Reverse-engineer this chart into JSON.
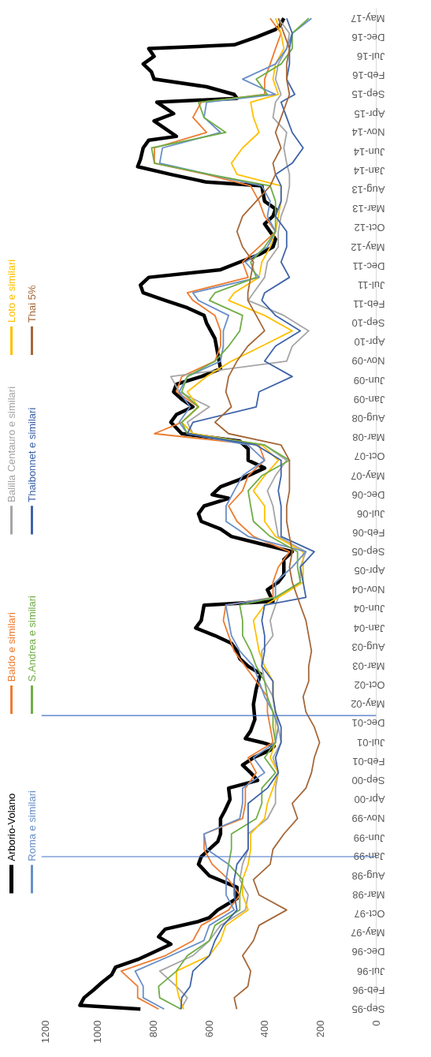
{
  "chart_data": {
    "type": "line",
    "legend": "left",
    "orientation": "horizontal",
    "ylim": [
      "1995-08-12",
      "2017-07-20"
    ],
    "xlim": [
      1200,
      0
    ],
    "xticks": [
      0,
      200,
      400,
      600,
      800,
      1000,
      1200
    ],
    "yticks": [
      {
        "value": "1995-09",
        "label": "Sep-95"
      },
      {
        "value": "1996-02",
        "label": "Feb-96"
      },
      {
        "value": "1996-07",
        "label": "Jul-96"
      },
      {
        "value": "1996-12",
        "label": "Dec-96"
      },
      {
        "value": "1997-05",
        "label": "May-97"
      },
      {
        "value": "1997-10",
        "label": "Oct-97"
      },
      {
        "value": "1998-03",
        "label": "Mar-98"
      },
      {
        "value": "1998-08",
        "label": "Aug-98"
      },
      {
        "value": "1999-01",
        "label": "Jan-99"
      },
      {
        "value": "1999-06",
        "label": "Jun-99"
      },
      {
        "value": "1999-11",
        "label": "Nov-99"
      },
      {
        "value": "2000-04",
        "label": "Apr-00"
      },
      {
        "value": "2000-09",
        "label": "Sep-00"
      },
      {
        "value": "2001-02",
        "label": "Feb-01"
      },
      {
        "value": "2001-07",
        "label": "Jul-01"
      },
      {
        "value": "2001-12",
        "label": "Dec-01"
      },
      {
        "value": "2002-05",
        "label": "May-02"
      },
      {
        "value": "2002-10",
        "label": "Oct-02"
      },
      {
        "value": "2003-03",
        "label": "Mar-03"
      },
      {
        "value": "2003-08",
        "label": "Aug-03"
      },
      {
        "value": "2004-01",
        "label": "Jan-04"
      },
      {
        "value": "2004-06",
        "label": "Jun-04"
      },
      {
        "value": "2004-11",
        "label": "Nov-04"
      },
      {
        "value": "2005-04",
        "label": "Apr-05"
      },
      {
        "value": "2005-09",
        "label": "Sep-05"
      },
      {
        "value": "2006-02",
        "label": "Feb-06"
      },
      {
        "value": "2006-07",
        "label": "Jul-06"
      },
      {
        "value": "2006-12",
        "label": "Dec-06"
      },
      {
        "value": "2007-05",
        "label": "May-07"
      },
      {
        "value": "2007-10",
        "label": "Oct-07"
      },
      {
        "value": "2008-03",
        "label": "Mar-08"
      },
      {
        "value": "2008-08",
        "label": "Aug-08"
      },
      {
        "value": "2009-01",
        "label": "Jan-09"
      },
      {
        "value": "2009-06",
        "label": "Jun-09"
      },
      {
        "value": "2009-11",
        "label": "Nov-09"
      },
      {
        "value": "2010-04",
        "label": "Apr-10"
      },
      {
        "value": "2010-09",
        "label": "Sep-10"
      },
      {
        "value": "2011-02",
        "label": "Feb-11"
      },
      {
        "value": "2011-07",
        "label": "Jul-11"
      },
      {
        "value": "2011-12",
        "label": "Dec-11"
      },
      {
        "value": "2012-05",
        "label": "May-12"
      },
      {
        "value": "2012-10",
        "label": "Oct-12"
      },
      {
        "value": "2013-03",
        "label": "Mar-13"
      },
      {
        "value": "2013-08",
        "label": "Aug-13"
      },
      {
        "value": "2014-01",
        "label": "Jan-14"
      },
      {
        "value": "2014-06",
        "label": "Jun-14"
      },
      {
        "value": "2014-11",
        "label": "Nov-14"
      },
      {
        "value": "2015-04",
        "label": "Apr-15"
      },
      {
        "value": "2015-09",
        "label": "Sep-15"
      },
      {
        "value": "2016-02",
        "label": "Feb-16"
      },
      {
        "value": "2016-07",
        "label": "Jul-16"
      },
      {
        "value": "2016-12",
        "label": "Dec-16"
      },
      {
        "value": "2017-05",
        "label": "May-17"
      }
    ],
    "ref_lines": [
      {
        "axis": "y",
        "value": "1999-01",
        "color": "#4472c4"
      },
      {
        "axis": "y",
        "value": "2002-02",
        "color": "#4472c4"
      }
    ],
    "x": [
      "1995-09",
      "1995-12",
      "1996-03",
      "1996-07",
      "1996-11",
      "1997-03",
      "1997-07",
      "1997-11",
      "1998-03",
      "1998-07",
      "1998-11",
      "1999-03",
      "1999-07",
      "1999-11",
      "2000-03",
      "2000-07",
      "2000-11",
      "2001-03",
      "2001-07",
      "2001-11",
      "2002-03",
      "2002-07",
      "2002-11",
      "2003-03",
      "2003-07",
      "2003-11",
      "2004-03",
      "2004-07",
      "2004-09",
      "2005-01",
      "2005-05",
      "2005-09",
      "2006-01",
      "2006-05",
      "2006-09",
      "2007-01",
      "2007-05",
      "2007-09",
      "2008-01",
      "2008-04",
      "2008-07",
      "2008-11",
      "2009-03",
      "2009-07",
      "2009-11",
      "2010-03",
      "2010-07",
      "2010-11",
      "2011-03",
      "2011-05",
      "2011-09",
      "2012-01",
      "2012-05",
      "2012-09",
      "2013-01",
      "2013-05",
      "2013-09",
      "2013-12",
      "2014-03",
      "2014-07",
      "2014-11",
      "2015-03",
      "2015-07",
      "2015-09",
      "2016-01",
      "2016-05",
      "2016-09",
      "2017-01",
      "2017-05"
    ],
    "series": [
      {
        "name": "Arborio-Volano",
        "color": "#000000",
        "x": [
          "1995-09",
          "1995-10",
          "1995-12",
          "1996-02",
          "1996-04",
          "1996-06",
          "1996-08",
          "1996-10",
          "1996-12",
          "1997-02",
          "1997-04",
          "1997-06",
          "1997-08",
          "1997-09",
          "1997-11",
          "1998-02",
          "1998-05",
          "1998-08",
          "1998-11",
          "1999-01",
          "1999-03",
          "1999-05",
          "1999-07",
          "1999-11",
          "2000-01",
          "2000-04",
          "2000-07",
          "2000-09",
          "2000-11",
          "2001-01",
          "2001-03",
          "2001-05",
          "2001-06",
          "2001-07",
          "2001-08",
          "2001-10",
          "2002-01",
          "2002-05",
          "2002-09",
          "2003-01",
          "2003-03",
          "2003-05",
          "2003-07",
          "2003-09",
          "2003-11",
          "2004-01",
          "2004-03",
          "2004-07",
          "2004-08",
          "2004-11",
          "2005-01",
          "2005-03",
          "2005-07",
          "2005-09",
          "2005-11",
          "2006-01",
          "2006-03",
          "2006-05",
          "2006-07",
          "2006-09",
          "2006-11",
          "2006-12",
          "2007-02",
          "2007-04",
          "2007-07",
          "2007-09",
          "2007-12",
          "2008-02",
          "2008-04",
          "2008-07",
          "2008-09",
          "2008-11",
          "2009-01",
          "2009-03",
          "2009-05",
          "2009-07",
          "2009-09",
          "2010-01",
          "2010-05",
          "2010-09",
          "2010-11",
          "2011-01",
          "2011-03",
          "2011-05",
          "2011-07",
          "2011-09",
          "2011-11",
          "2012-01",
          "2012-03",
          "2012-05",
          "2012-07",
          "2012-11",
          "2013-01",
          "2013-03",
          "2013-05",
          "2013-09",
          "2013-10",
          "2013-12",
          "2014-02",
          "2014-04",
          "2014-07",
          "2014-09",
          "2014-10",
          "2014-12",
          "2015-02",
          "2015-04",
          "2015-07",
          "2015-08",
          "2015-09",
          "2015-11",
          "2016-01",
          "2016-03",
          "2016-05",
          "2016-07",
          "2016-09",
          "2016-10",
          "2016-12",
          "2017-02",
          "2017-03",
          "2017-05"
        ],
        "values": [
          845,
          1062,
          1047,
          1013,
          983,
          948,
          934,
          855,
          795,
          736,
          780,
          756,
          637,
          598,
          568,
          499,
          499,
          598,
          637,
          627,
          598,
          568,
          558,
          558,
          543,
          524,
          529,
          425,
          450,
          479,
          440,
          380,
          366,
          410,
          469,
          450,
          435,
          440,
          430,
          415,
          459,
          489,
          499,
          519,
          578,
          647,
          627,
          617,
          370,
          390,
          351,
          331,
          331,
          301,
          410,
          519,
          558,
          627,
          637,
          617,
          529,
          588,
          558,
          489,
          400,
          459,
          459,
          489,
          697,
          736,
          716,
          657,
          697,
          726,
          716,
          627,
          558,
          568,
          578,
          608,
          617,
          677,
          756,
          835,
          845,
          815,
          558,
          489,
          420,
          370,
          361,
          400,
          370,
          361,
          400,
          410,
          608,
          736,
          855,
          845,
          835,
          815,
          716,
          756,
          796,
          726,
          786,
          499,
          509,
          608,
          796,
          806,
          835,
          796,
          815,
          509,
          430,
          361,
          346,
          331
        ]
      },
      {
        "name": "Baldo e similari",
        "color": "#ed7d31",
        "values": [
          780,
          855,
          855,
          914,
          756,
          657,
          627,
          529,
          489,
          529,
          588,
          617,
          617,
          479,
          469,
          469,
          430,
          459,
          370,
          380,
          390,
          390,
          430,
          469,
          509,
          529,
          548,
          539,
          370,
          370,
          351,
          311,
          440,
          499,
          529,
          479,
          459,
          400,
          420,
          795,
          697,
          637,
          716,
          697,
          578,
          558,
          558,
          578,
          657,
          677,
          459,
          479,
          420,
          361,
          400,
          420,
          450,
          608,
          795,
          795,
          608,
          657,
          627,
          400,
          400,
          380,
          361,
          341,
          380
        ]
      },
      {
        "name": "Balilla Centauro e similari",
        "color": "#a5a5a5",
        "values": [
          700,
          677,
          716,
          776,
          657,
          598,
          558,
          469,
          459,
          489,
          479,
          459,
          459,
          390,
          361,
          361,
          351,
          370,
          341,
          351,
          361,
          370,
          400,
          410,
          410,
          370,
          380,
          361,
          351,
          272,
          272,
          252,
          351,
          361,
          370,
          390,
          361,
          321,
          400,
          657,
          677,
          598,
          706,
          736,
          321,
          301,
          242,
          331,
          459,
          440,
          400,
          390,
          351,
          351,
          341,
          321,
          311,
          311,
          321,
          331,
          321,
          370,
          361,
          341,
          361,
          351,
          321,
          311,
          351
        ]
      },
      {
        "name": "Loto  e similari",
        "color": "#ffc000",
        "values": [
          690,
          706,
          716,
          716,
          598,
          558,
          539,
          459,
          479,
          479,
          459,
          450,
          450,
          400,
          390,
          370,
          351,
          380,
          361,
          361,
          361,
          370,
          370,
          400,
          420,
          430,
          440,
          400,
          351,
          262,
          262,
          262,
          361,
          400,
          400,
          440,
          400,
          351,
          410,
          657,
          697,
          637,
          677,
          608,
          519,
          410,
          301,
          400,
          529,
          509,
          420,
          410,
          380,
          361,
          351,
          341,
          341,
          499,
          519,
          479,
          420,
          440,
          450,
          351,
          370,
          361,
          331,
          341,
          361
        ]
      },
      {
        "name": "Roma e similari",
        "color": "#6a8fc8",
        "values": [
          760,
          835,
          835,
          864,
          736,
          618,
          598,
          509,
          538,
          538,
          529,
          608,
          617,
          489,
          479,
          479,
          400,
          440,
          361,
          351,
          370,
          400,
          420,
          440,
          489,
          519,
          529,
          539,
          361,
          361,
          301,
          252,
          459,
          538,
          538,
          509,
          479,
          400,
          459,
          677,
          706,
          667,
          706,
          677,
          558,
          548,
          548,
          529,
          637,
          657,
          420,
          469,
          390,
          361,
          390,
          380,
          410,
          598,
          776,
          766,
          558,
          617,
          608,
          361,
          479,
          361,
          321,
          301,
          232
        ]
      },
      {
        "name": "S.Andrea e similari",
        "color": "#70ad47",
        "values": [
          700,
          776,
          780,
          716,
          677,
          598,
          578,
          489,
          489,
          479,
          529,
          519,
          519,
          430,
          410,
          410,
          361,
          400,
          361,
          370,
          370,
          390,
          400,
          430,
          450,
          479,
          479,
          489,
          361,
          272,
          282,
          282,
          380,
          440,
          450,
          459,
          410,
          311,
          400,
          677,
          697,
          637,
          697,
          677,
          578,
          529,
          489,
          479,
          598,
          578,
          430,
          450,
          400,
          361,
          361,
          361,
          380,
          598,
          795,
          805,
          539,
          617,
          637,
          390,
          430,
          341,
          301,
          301,
          242
        ]
      },
      {
        "name": "Thaibonnet e similari",
        "color": "#3f64a8",
        "values": [
          700,
          697,
          667,
          657,
          598,
          578,
          548,
          499,
          509,
          509,
          499,
          459,
          459,
          459,
          459,
          390,
          351,
          361,
          341,
          341,
          361,
          370,
          370,
          410,
          400,
          400,
          410,
          400,
          252,
          262,
          272,
          222,
          341,
          341,
          341,
          351,
          341,
          341,
          430,
          677,
          657,
          430,
          420,
          301,
          400,
          361,
          272,
          361,
          410,
          400,
          311,
          341,
          321,
          321,
          361,
          341,
          341,
          361,
          301,
          262,
          301,
          321,
          341,
          292,
          321,
          311,
          311,
          301,
          321
        ]
      },
      {
        "name": "Thai 5%",
        "color": "#a5683a",
        "values": [
          500,
          509,
          460,
          450,
          479,
          440,
          420,
          321,
          420,
          440,
          380,
          370,
          331,
          282,
          301,
          252,
          232,
          222,
          203,
          222,
          252,
          262,
          242,
          242,
          232,
          242,
          252,
          272,
          282,
          301,
          311,
          301,
          311,
          321,
          321,
          311,
          311,
          311,
          341,
          529,
          578,
          519,
          539,
          529,
          499,
          460,
          400,
          430,
          460,
          460,
          450,
          440,
          479,
          499,
          479,
          430,
          380,
          361,
          370,
          341,
          361,
          341,
          321,
          311,
          321,
          321,
          311,
          331,
          351
        ]
      }
    ]
  }
}
